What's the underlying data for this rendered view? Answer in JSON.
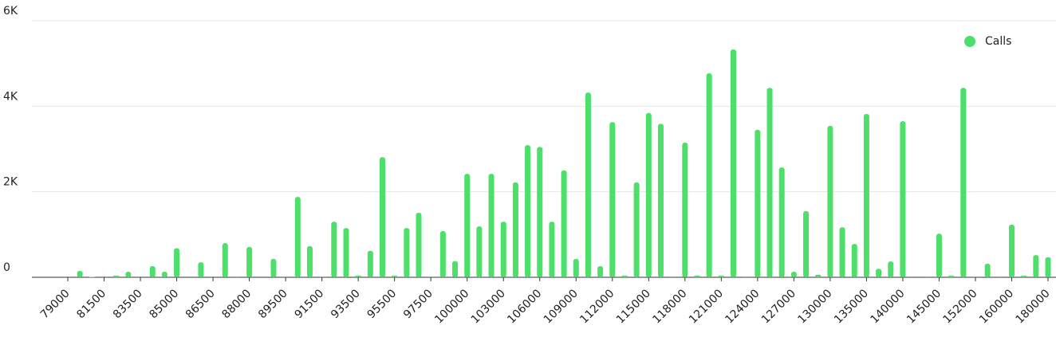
{
  "chart_data": {
    "type": "bar",
    "categories": [
      "79000",
      null,
      null,
      "81500",
      null,
      null,
      "83500",
      null,
      null,
      "85000",
      null,
      null,
      "86500",
      null,
      null,
      "88000",
      null,
      null,
      "89500",
      null,
      null,
      "91500",
      null,
      null,
      "93500",
      null,
      null,
      "95500",
      null,
      null,
      "97500",
      null,
      null,
      "100000",
      null,
      null,
      "103000",
      null,
      null,
      "106000",
      null,
      null,
      "109000",
      null,
      null,
      "112000",
      null,
      null,
      "115000",
      null,
      null,
      "118000",
      null,
      null,
      "121000",
      null,
      null,
      "124000",
      null,
      null,
      "127000",
      null,
      null,
      "130000",
      null,
      null,
      "135000",
      null,
      null,
      "140000",
      null,
      null,
      "145000",
      null,
      null,
      "152000",
      null,
      null,
      "160000",
      null,
      null,
      "180000"
    ],
    "series": [
      {
        "name": "Calls",
        "color": "#4cdf6a",
        "values": [
          0,
          150,
          10,
          0,
          40,
          130,
          0,
          260,
          130,
          680,
          0,
          350,
          0,
          800,
          20,
          710,
          0,
          430,
          20,
          1880,
          730,
          20,
          1300,
          1150,
          40,
          620,
          2810,
          40,
          1150,
          1510,
          20,
          1080,
          380,
          2420,
          1190,
          2420,
          1300,
          2220,
          3090,
          3050,
          1300,
          2500,
          430,
          4320,
          260,
          3630,
          40,
          2220,
          3840,
          3590,
          20,
          3150,
          40,
          4770,
          40,
          5330,
          20,
          3450,
          4430,
          2570,
          130,
          1550,
          60,
          3540,
          1170,
          780,
          3820,
          200,
          370,
          3650,
          0,
          20,
          1020,
          40,
          4430,
          20,
          320,
          20,
          1230,
          40,
          520,
          470
        ]
      }
    ],
    "ylim": [
      0,
      6000
    ],
    "yticks": [
      0,
      {
        "value": 2000,
        "label": "2K"
      },
      {
        "value": 4000,
        "label": "4K"
      },
      {
        "value": 6000,
        "label": "6K"
      }
    ],
    "grid": true,
    "legend": "top-right"
  }
}
